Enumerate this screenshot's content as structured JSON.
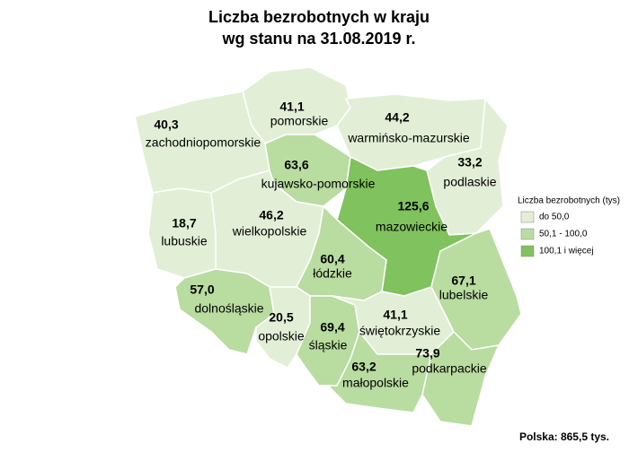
{
  "title": [
    "Liczba bezrobotnych w kraju",
    "wg stanu na 31.08.2019 r."
  ],
  "regions": [
    {
      "name": "zachodniopomorskie",
      "value": 40.3,
      "value_label": "40,3",
      "color": "#e2efd6"
    },
    {
      "name": "pomorskie",
      "value": 41.1,
      "value_label": "41,1",
      "color": "#e2efd6"
    },
    {
      "name": "warmińsko-mazurskie",
      "value": 44.2,
      "value_label": "44,2",
      "color": "#e2efd6"
    },
    {
      "name": "podlaskie",
      "value": 33.2,
      "value_label": "33,2",
      "color": "#e2efd6"
    },
    {
      "name": "kujawsko-pomorskie",
      "value": 63.6,
      "value_label": "63,6",
      "color": "#b9dca0"
    },
    {
      "name": "mazowieckie",
      "value": 125.6,
      "value_label": "125,6",
      "color": "#80c25d"
    },
    {
      "name": "lubuskie",
      "value": 18.7,
      "value_label": "18,7",
      "color": "#e2efd6"
    },
    {
      "name": "wielkopolskie",
      "value": 46.2,
      "value_label": "46,2",
      "color": "#e2efd6"
    },
    {
      "name": "łódzkie",
      "value": 60.4,
      "value_label": "60,4",
      "color": "#b9dca0"
    },
    {
      "name": "lubelskie",
      "value": 67.1,
      "value_label": "67,1",
      "color": "#b9dca0"
    },
    {
      "name": "dolnośląskie",
      "value": 57.0,
      "value_label": "57,0",
      "color": "#b9dca0"
    },
    {
      "name": "opolskie",
      "value": 20.5,
      "value_label": "20,5",
      "color": "#e2efd6"
    },
    {
      "name": "śląskie",
      "value": 69.4,
      "value_label": "69,4",
      "color": "#b9dca0"
    },
    {
      "name": "świętokrzyskie",
      "value": 41.1,
      "value_label": "41,1",
      "color": "#e2efd6"
    },
    {
      "name": "małopolskie",
      "value": 63.2,
      "value_label": "63,2",
      "color": "#b9dca0"
    },
    {
      "name": "podkarpackie",
      "value": 73.9,
      "value_label": "73,9",
      "color": "#b9dca0"
    }
  ],
  "legend": {
    "title": "Liczba bezrobotnych (tys)",
    "items": [
      {
        "label": "do 50,0",
        "color": "#e2efd6"
      },
      {
        "label": "50,1 - 100,0",
        "color": "#b9dca0"
      },
      {
        "label": "100,1 i więcej",
        "color": "#80c25d"
      }
    ]
  },
  "footer": "Polska: 865,5 tys."
}
